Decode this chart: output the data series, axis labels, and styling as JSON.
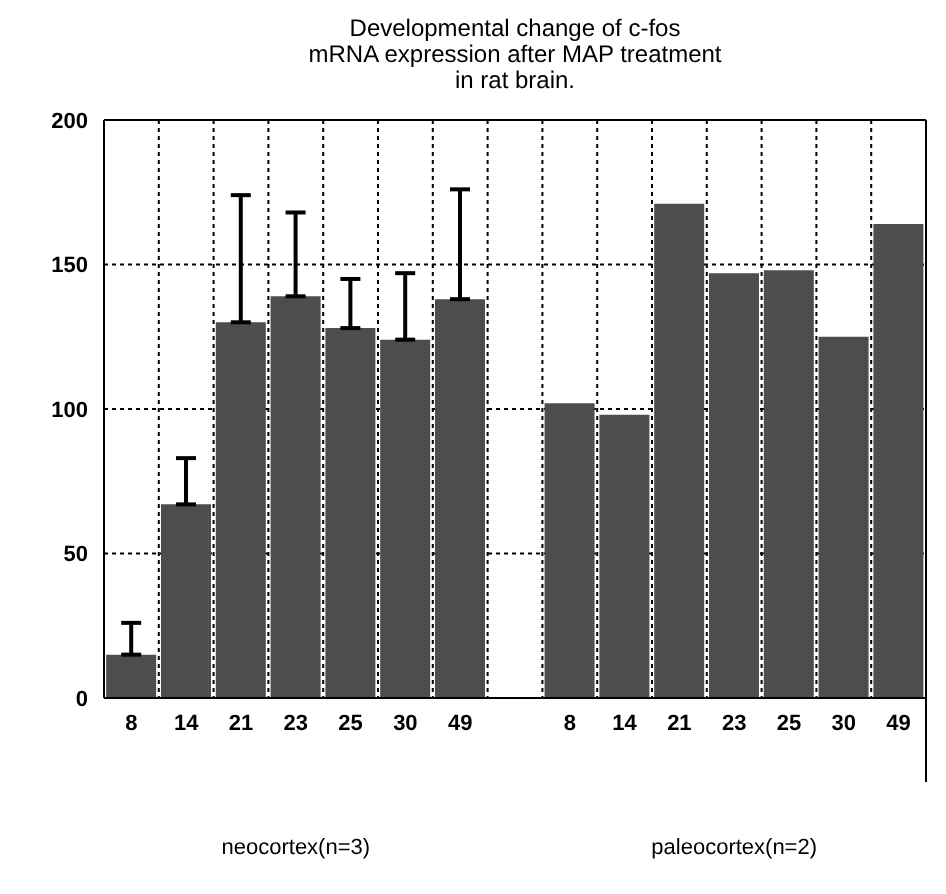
{
  "chart_data": {
    "type": "bar",
    "title": "Developmental change of c-fos\nmRNA expression after MAP treatment\nin rat brain.",
    "categories": [
      "8",
      "14",
      "21",
      "23",
      "25",
      "30",
      "49",
      null,
      "8",
      "14",
      "21",
      "23",
      "25",
      "30",
      "49"
    ],
    "values": [
      15,
      67,
      130,
      139,
      128,
      124,
      138,
      null,
      102,
      98,
      171,
      147,
      148,
      125,
      164
    ],
    "errors": [
      11,
      16,
      44,
      29,
      17,
      23,
      38,
      null,
      null,
      null,
      null,
      null,
      null,
      null,
      null
    ],
    "color": "#4d4d4d",
    "ylim": [
      0,
      200
    ],
    "yticks": [
      0,
      50,
      100,
      150,
      200
    ],
    "grid": true,
    "annotations": [
      "neocortex(n=3)",
      "paleocortex(n=2)"
    ]
  }
}
